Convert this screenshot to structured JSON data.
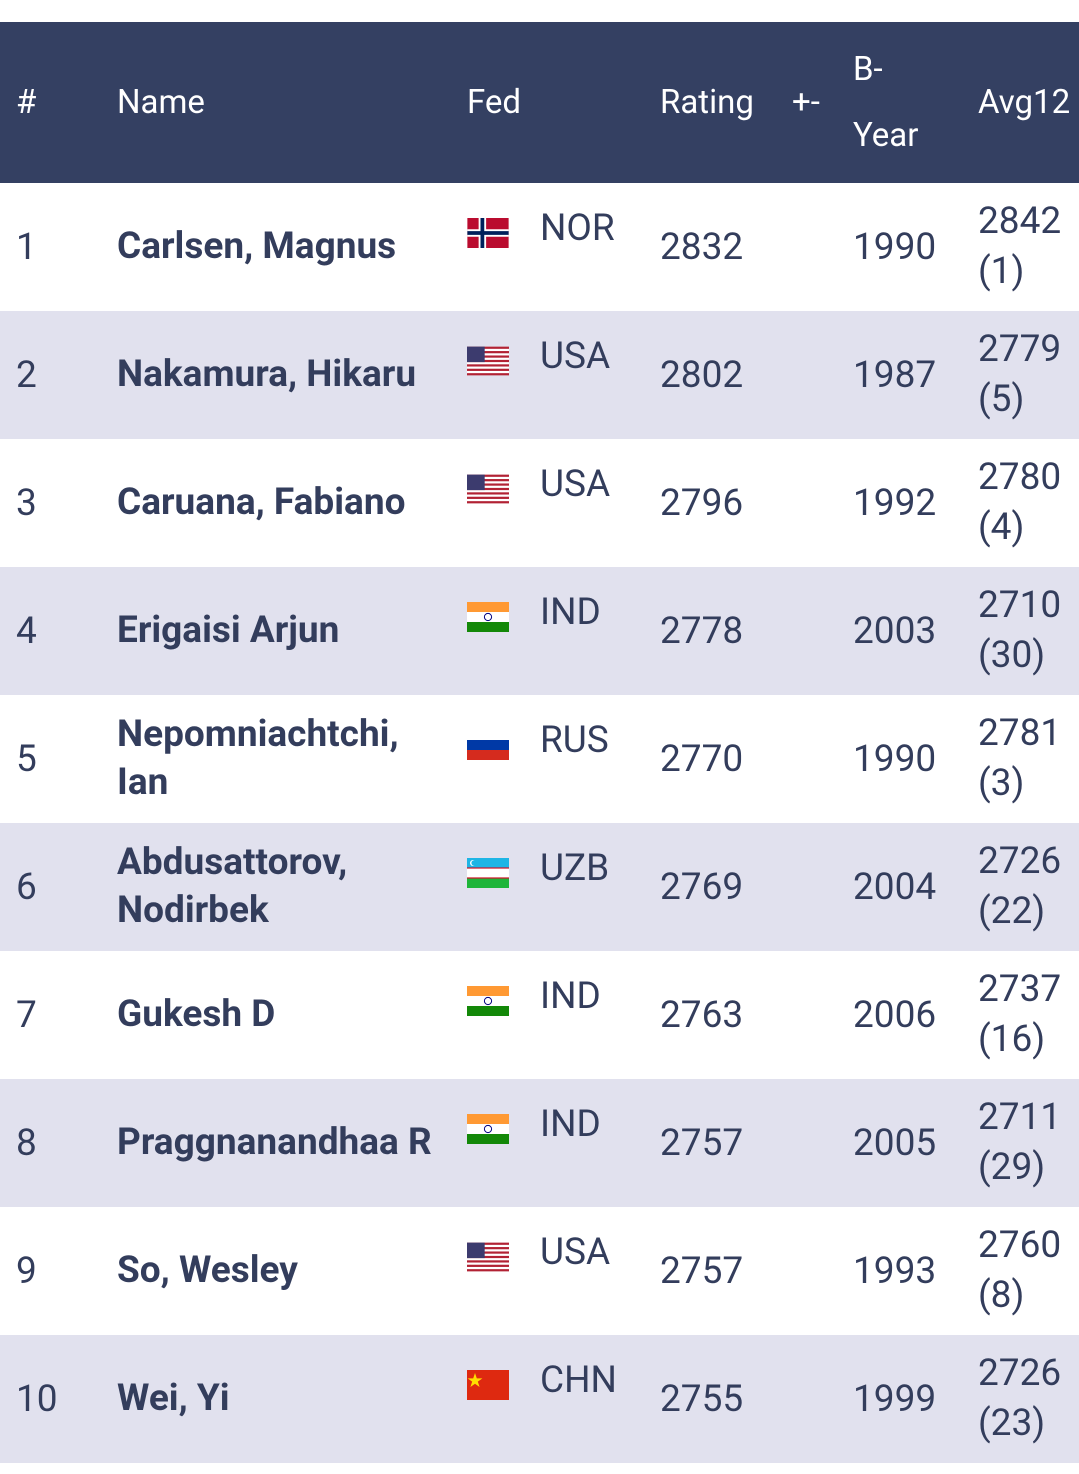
{
  "table": {
    "columns": [
      "#",
      "Name",
      "Fed",
      "Rating",
      "+-",
      "B-Year",
      "Avg12"
    ],
    "rows": [
      {
        "rank": "1",
        "name": "Carlsen, Magnus",
        "fed": "NOR",
        "rating": "2832",
        "byear": "1990",
        "avg12": "2842 (1)"
      },
      {
        "rank": "2",
        "name": "Nakamura, Hikaru",
        "fed": "USA",
        "rating": "2802",
        "byear": "1987",
        "avg12": "2779 (5)"
      },
      {
        "rank": "3",
        "name": "Caruana, Fabiano",
        "fed": "USA",
        "rating": "2796",
        "byear": "1992",
        "avg12": "2780 (4)"
      },
      {
        "rank": "4",
        "name": "Erigaisi Arjun",
        "fed": "IND",
        "rating": "2778",
        "byear": "2003",
        "avg12": "2710 (30)"
      },
      {
        "rank": "5",
        "name": "Nepomniachtchi, Ian",
        "fed": "RUS",
        "rating": "2770",
        "byear": "1990",
        "avg12": "2781 (3)"
      },
      {
        "rank": "6",
        "name": "Abdusattorov, Nodirbek",
        "fed": "UZB",
        "rating": "2769",
        "byear": "2004",
        "avg12": "2726 (22)"
      },
      {
        "rank": "7",
        "name": "Gukesh D",
        "fed": "IND",
        "rating": "2763",
        "byear": "2006",
        "avg12": "2737 (16)"
      },
      {
        "rank": "8",
        "name": "Praggnanandhaa R",
        "fed": "IND",
        "rating": "2757",
        "byear": "2005",
        "avg12": "2711 (29)"
      },
      {
        "rank": "9",
        "name": "So, Wesley",
        "fed": "USA",
        "rating": "2757",
        "byear": "1993",
        "avg12": "2760 (8)"
      },
      {
        "rank": "10",
        "name": "Wei, Yi",
        "fed": "CHN",
        "rating": "2755",
        "byear": "1999",
        "avg12": "2726 (23)"
      }
    ]
  }
}
